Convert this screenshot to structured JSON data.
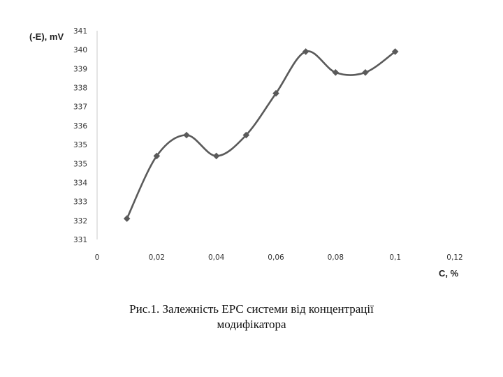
{
  "chart_data": {
    "type": "line",
    "title": "",
    "xlabel": "C, %",
    "ylabel": "(-E), mV",
    "xlim": [
      0,
      0.12
    ],
    "ylim": [
      331,
      341
    ],
    "x_ticks": [
      "0",
      "0,02",
      "0,04",
      "0,06",
      "0,08",
      "0,1",
      "0,12"
    ],
    "y_ticks": [
      "331",
      "332",
      "333",
      "334",
      "335",
      "335",
      "336",
      "337",
      "338",
      "339",
      "340",
      "341"
    ],
    "series": [
      {
        "x": [
          0.01,
          0.02,
          0.03,
          0.04,
          0.05,
          0.06,
          0.07,
          0.08,
          0.09,
          0.1
        ],
        "y": [
          332,
          335,
          336,
          335,
          336,
          338,
          340,
          339,
          339,
          340
        ],
        "color": "#5a5a5a",
        "marker": "diamond",
        "smooth": true
      }
    ],
    "grid": false,
    "legend": "none"
  },
  "caption": {
    "line1": "Рис.1.  Залежність ЕРС системи від концентрації",
    "line2": "модифікатора"
  }
}
